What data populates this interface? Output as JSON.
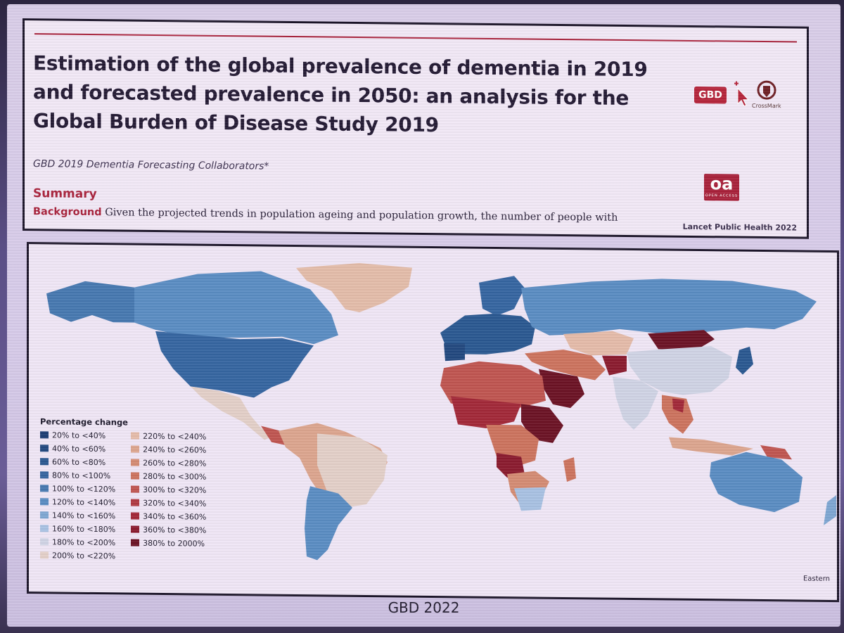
{
  "paper": {
    "title": "Estimation of the global prevalence of dementia in 2019 and forecasted prevalence in 2050: an analysis for the Global Burden of Disease Study 2019",
    "authors": "GBD 2019 Dementia Forecasting Collaborators*",
    "summary_heading": "Summary",
    "background_label": "Background",
    "background_text": "Given the projected trends in population ageing and population growth, the number of people with",
    "journal": "Lancet Public Health 2022",
    "gbd_badge": "GBD",
    "crossmark_label": "CrossMark",
    "oa_badge": "oa",
    "oa_sub": "OPEN ACCESS"
  },
  "map": {
    "legend_title": "Percentage change",
    "legend": [
      {
        "label": "20% to <40%",
        "color": "#1c3d73"
      },
      {
        "label": "40% to <60%",
        "color": "#22487f"
      },
      {
        "label": "60% to <80%",
        "color": "#2a5891"
      },
      {
        "label": "80% to <100%",
        "color": "#3565a0"
      },
      {
        "label": "100% to <120%",
        "color": "#4678b0"
      },
      {
        "label": "120% to <140%",
        "color": "#5a8cc2"
      },
      {
        "label": "140% to <160%",
        "color": "#7ea6d2"
      },
      {
        "label": "160% to <180%",
        "color": "#a8c1e2"
      },
      {
        "label": "180% to <200%",
        "color": "#cfd3e4"
      },
      {
        "label": "200% to <220%",
        "color": "#e3cfc8"
      },
      {
        "label": "220% to <240%",
        "color": "#e4bba9"
      },
      {
        "label": "240% to <260%",
        "color": "#dca58e"
      },
      {
        "label": "260% to <280%",
        "color": "#d48b73"
      },
      {
        "label": "280% to <300%",
        "color": "#cc735e"
      },
      {
        "label": "300% to <320%",
        "color": "#bf5550"
      },
      {
        "label": "320% to <340%",
        "color": "#b03a42"
      },
      {
        "label": "340% to <360%",
        "color": "#a22838"
      },
      {
        "label": "360% to <380%",
        "color": "#8a1b2e"
      },
      {
        "label": "380% to 2000%",
        "color": "#6b1224"
      }
    ],
    "projection_note": "Eastern"
  },
  "footer": "GBD 2022"
}
